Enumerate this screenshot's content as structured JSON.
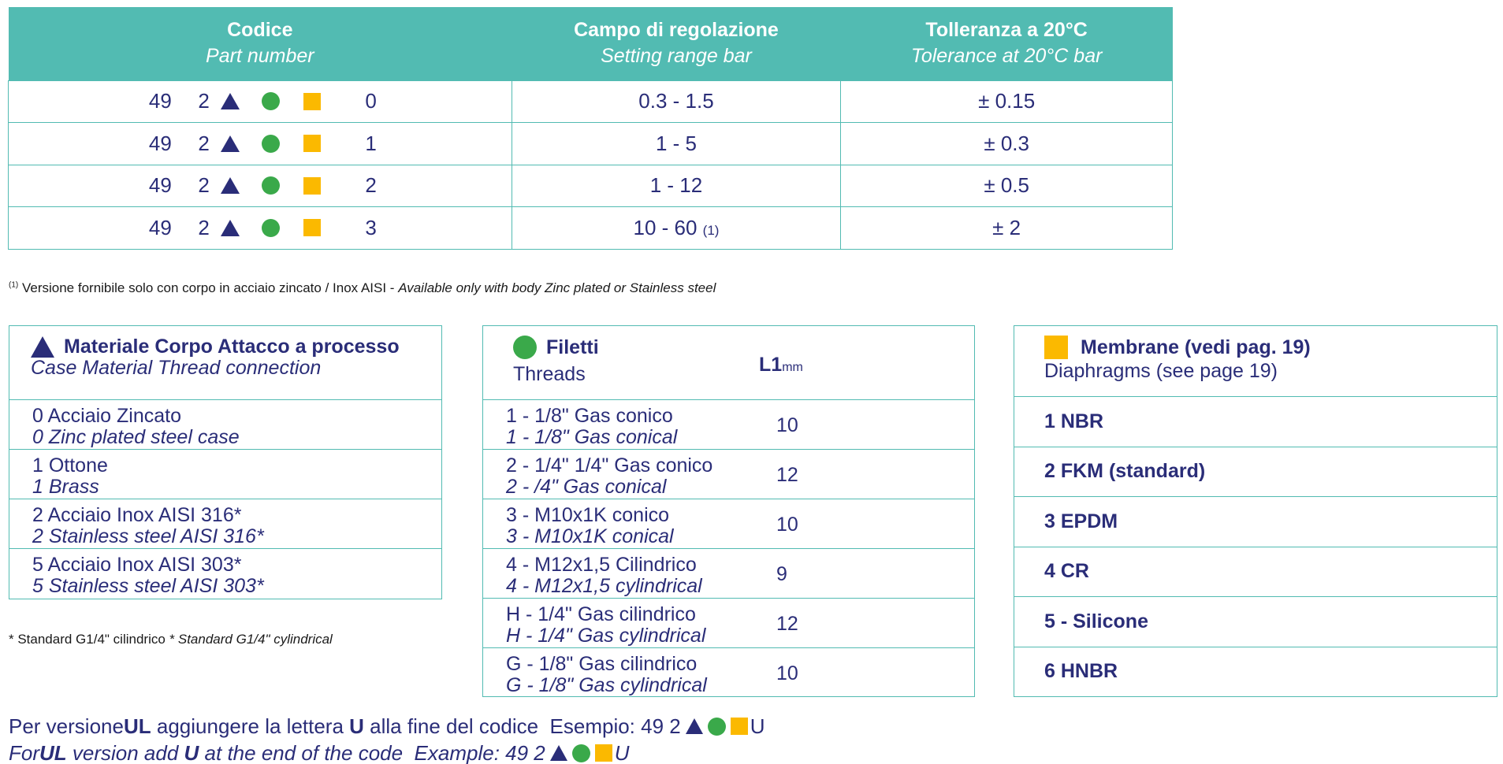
{
  "main_table": {
    "headers": [
      {
        "title": "Codice",
        "subtitle": "Part number"
      },
      {
        "title": "Campo di regolazione",
        "subtitle": "Setting range bar"
      },
      {
        "title": "Tolleranza a 20°C",
        "subtitle": "Tolerance at 20°C bar"
      }
    ],
    "rows": [
      {
        "code_prefix": "49",
        "code_digit": "2",
        "code_suffix": "0",
        "range": "0.3 - 1.5",
        "range_note": "",
        "tolerance": "± 0.15"
      },
      {
        "code_prefix": "49",
        "code_digit": "2",
        "code_suffix": "1",
        "range": "1 - 5",
        "range_note": "",
        "tolerance": "± 0.3"
      },
      {
        "code_prefix": "49",
        "code_digit": "2",
        "code_suffix": "2",
        "range": "1 - 12",
        "range_note": "",
        "tolerance": "± 0.5"
      },
      {
        "code_prefix": "49",
        "code_digit": "2",
        "code_suffix": "3",
        "range": "10 - 60",
        "range_note": "(1)",
        "tolerance": "± 2"
      }
    ]
  },
  "footnote": {
    "marker": "(1)",
    "text_it": "Versione fornibile solo con corpo in acciaio  zincato / Inox AISI - ",
    "text_en": "Available only with body  Zinc plated or Stainless steel"
  },
  "material_box": {
    "title_it": "Materiale Corpo Attacco a processo",
    "title_en": "Case Material Thread connection",
    "items": [
      {
        "it": "0 Acciaio Zincato",
        "en": "0 Zinc plated steel case"
      },
      {
        "it": "1 Ottone",
        "en": "1 Brass"
      },
      {
        "it": "2 Acciaio Inox AISI 316*",
        "en": "2 Stainless steel AISI 316*"
      },
      {
        "it": "5 Acciaio Inox AISI 303*",
        "en": "5 Stainless steel AISI 303*"
      }
    ]
  },
  "asterisk_note": {
    "text_it": "* Standard G1/4\" cilindrico ",
    "text_en": "* Standard G1/4\" cylindrical"
  },
  "threads_box": {
    "title_it": "Filetti",
    "title_en": "Threads",
    "col_label": "L1",
    "col_unit": "mm",
    "items": [
      {
        "it": "1 - 1/8\" Gas conico",
        "en": "1 - 1/8\" Gas conical",
        "l1": "10"
      },
      {
        "it": "2 - 1/4\" 1/4\" Gas conico",
        "en": "2 - /4\" Gas conical",
        "l1": "12"
      },
      {
        "it": "3 - M10x1K conico",
        "en": "3 - M10x1K conical",
        "l1": "10"
      },
      {
        "it": "4 - M12x1,5 Cilindrico",
        "en": "4 -  M12x1,5 cylindrical",
        "l1": "9"
      },
      {
        "it": "H - 1/4\" Gas cilindrico",
        "en": "H - 1/4\" Gas cylindrical",
        "l1": "12"
      },
      {
        "it": "G - 1/8\" Gas cilindrico",
        "en": "G - 1/8\" Gas cylindrical",
        "l1": "10"
      }
    ]
  },
  "membrane_box": {
    "title_it": "Membrane (vedi pag. 19)",
    "title_en": "Diaphragms (see page 19)",
    "items": [
      "1 NBR",
      "2 FKM (standard)",
      "3 EPDM",
      "4 CR",
      "5 - Silicone",
      "6 HNBR"
    ]
  },
  "ul_note": {
    "line1_a": "Per versione ",
    "line1_ul": "UL",
    "line1_b": " aggiungere la lettera ",
    "line1_u": "U",
    "line1_c": " alla fine del codice  Esempio: 49 2",
    "line1_end": "U",
    "line2_a": "For ",
    "line2_ul": "UL",
    "line2_b": " version add ",
    "line2_u": "U",
    "line2_c": " at the end of the code  Example: 49 2",
    "line2_end": "U"
  },
  "colors": {
    "teal": "#52bbb2",
    "navy": "#2a2d78",
    "green": "#3aa94a",
    "yellow": "#fbb900"
  },
  "icons": [
    "triangle-icon",
    "circle-icon",
    "square-icon"
  ]
}
